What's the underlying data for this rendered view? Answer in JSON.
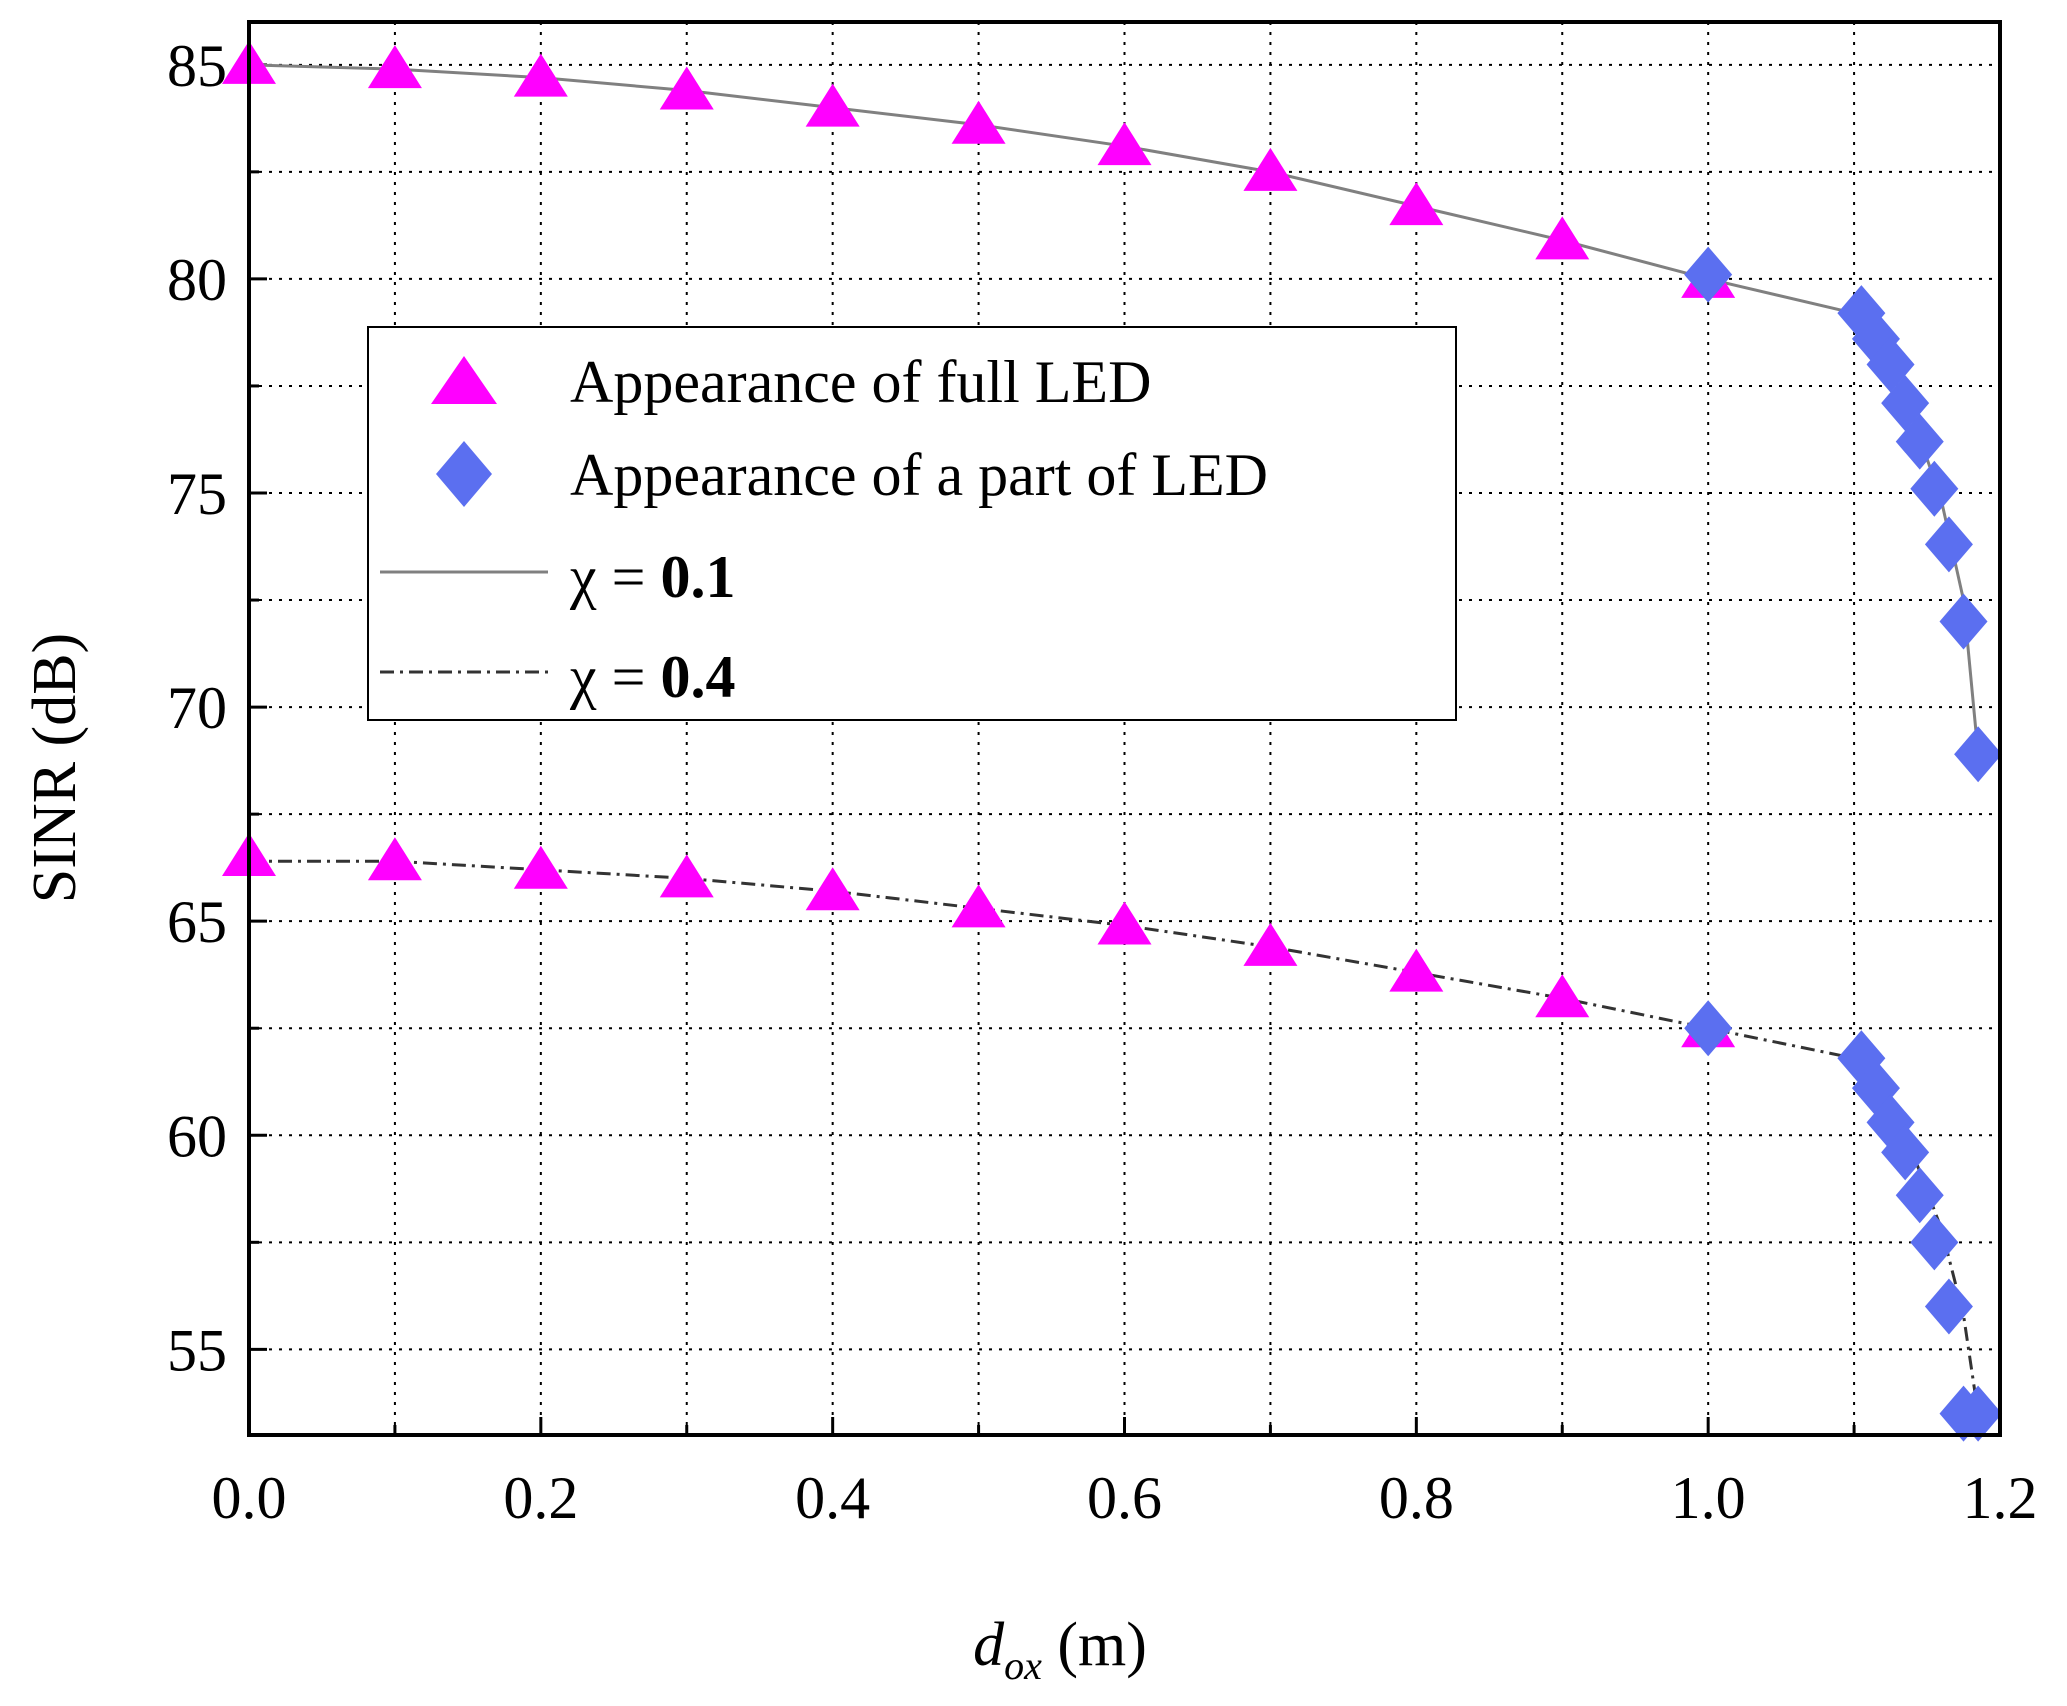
{
  "chart_data": {
    "type": "scatter",
    "title": "",
    "xlabel": "d_ox (m)",
    "xlabel_main": "d",
    "xlabel_sub": "ox",
    "xlabel_unit": " (m)",
    "ylabel": "SINR (dB)",
    "xlim": [
      0,
      1.2
    ],
    "ylim": [
      53,
      86
    ],
    "x_ticks": [
      0.0,
      0.2,
      0.4,
      0.6,
      0.8,
      1.0,
      1.2
    ],
    "x_tick_labels": [
      "0.0",
      "0.2",
      "0.4",
      "0.6",
      "0.8",
      "1.0",
      "1.2"
    ],
    "y_ticks": [
      55,
      60,
      65,
      70,
      75,
      80,
      85
    ],
    "y_tick_labels": [
      "55",
      "60",
      "65",
      "70",
      "75",
      "80",
      "85"
    ],
    "grid": true,
    "legend_position": "upper-left-center",
    "colors": {
      "triangle": "#ff00ff",
      "diamond": "#5b6ff0",
      "line": "#808080",
      "dashdot": "#333333"
    },
    "series": [
      {
        "name": "Appearance of full LED",
        "kind": "marker-triangle",
        "groups": [
          {
            "x": [
              0.0,
              0.1,
              0.2,
              0.3,
              0.4,
              0.5,
              0.6,
              0.7,
              0.8,
              0.9,
              1.0
            ],
            "y": [
              85.0,
              84.9,
              84.7,
              84.4,
              84.0,
              83.6,
              83.1,
              82.5,
              81.7,
              80.9,
              80.0
            ]
          },
          {
            "x": [
              0.0,
              0.1,
              0.2,
              0.3,
              0.4,
              0.5,
              0.6,
              0.7,
              0.8,
              0.9,
              1.0
            ],
            "y": [
              66.5,
              66.4,
              66.2,
              66.0,
              65.7,
              65.3,
              64.9,
              64.4,
              63.8,
              63.2,
              62.5
            ]
          }
        ]
      },
      {
        "name": "Appearance of a part of LED",
        "kind": "marker-diamond",
        "groups": [
          {
            "x": [
              1.0,
              1.105,
              1.115,
              1.125,
              1.135,
              1.145,
              1.155,
              1.165,
              1.175,
              1.185
            ],
            "y": [
              80.1,
              79.2,
              78.6,
              78.0,
              77.1,
              76.2,
              75.1,
              73.8,
              72.0,
              68.9
            ]
          },
          {
            "x": [
              1.0,
              1.105,
              1.115,
              1.125,
              1.135,
              1.145,
              1.155,
              1.165,
              1.175,
              1.185
            ],
            "y": [
              62.5,
              61.8,
              61.1,
              60.3,
              59.6,
              58.6,
              57.5,
              56.0,
              53.5,
              53.5
            ]
          }
        ]
      },
      {
        "name": "χ = 0.1",
        "kind": "line-solid",
        "x": [
          0.0,
          0.1,
          0.2,
          0.3,
          0.4,
          0.5,
          0.6,
          0.7,
          0.8,
          0.9,
          1.0,
          1.1,
          1.12,
          1.14,
          1.16,
          1.175,
          1.185
        ],
        "y": [
          85.0,
          84.9,
          84.7,
          84.4,
          84.0,
          83.6,
          83.1,
          82.5,
          81.7,
          80.9,
          80.0,
          79.2,
          78.2,
          76.8,
          74.8,
          72.5,
          68.9
        ]
      },
      {
        "name": "χ = 0.4",
        "kind": "line-dashdot",
        "x": [
          0.0,
          0.1,
          0.2,
          0.3,
          0.4,
          0.5,
          0.6,
          0.7,
          0.8,
          0.9,
          1.0,
          1.1,
          1.12,
          1.14,
          1.16,
          1.175,
          1.185
        ],
        "y": [
          66.4,
          66.4,
          66.2,
          66.0,
          65.7,
          65.3,
          64.9,
          64.4,
          63.8,
          63.2,
          62.5,
          61.8,
          60.8,
          59.6,
          57.8,
          55.8,
          53.5
        ]
      }
    ]
  },
  "legend": {
    "items": [
      {
        "label": "Appearance of full LED"
      },
      {
        "label": "Appearance of a part of LED"
      },
      {
        "label_symbol": "χ",
        "label_rest": " = ",
        "label_value": "0.1"
      },
      {
        "label_symbol": "χ",
        "label_rest": " = ",
        "label_value": "0.4"
      }
    ]
  }
}
